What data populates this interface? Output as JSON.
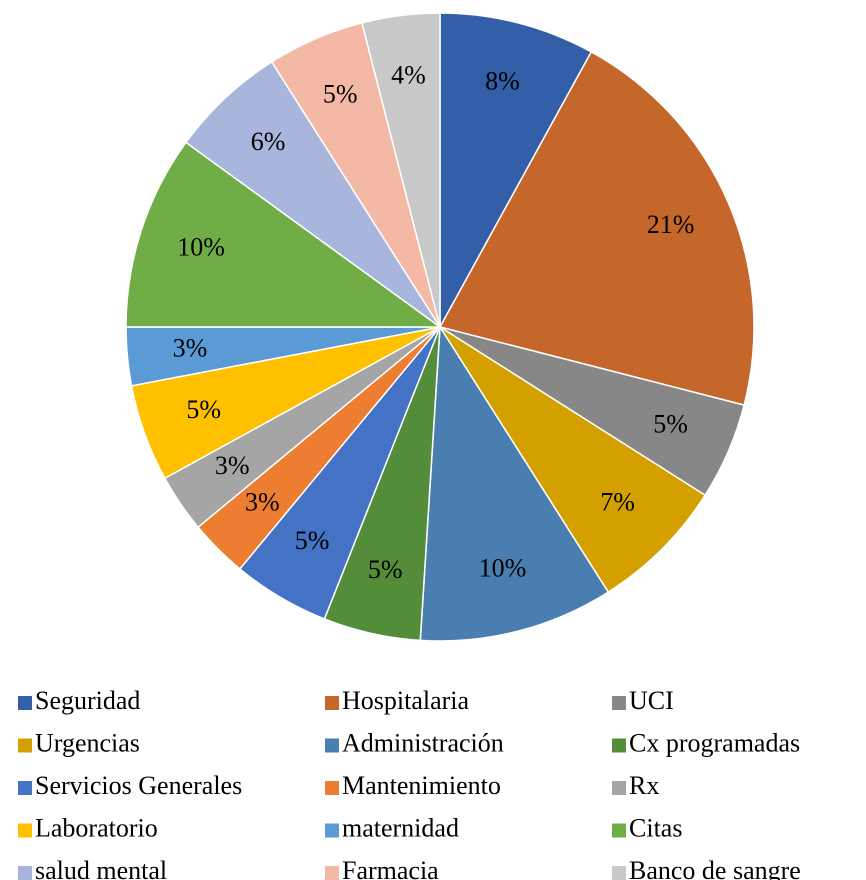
{
  "chart_data": {
    "type": "pie",
    "categories": [
      "Seguridad",
      "Hospitalaria",
      "UCI",
      "Urgencias",
      "Administración",
      "Cx programadas",
      "Servicios Generales",
      "Mantenimiento",
      "Rx",
      "Laboratorio",
      "maternidad",
      "Citas",
      "salud mental",
      "Farmacia",
      "Banco de sangre"
    ],
    "values": [
      8,
      21,
      5,
      7,
      10,
      5,
      5,
      3,
      3,
      5,
      3,
      10,
      6,
      5,
      4
    ],
    "value_labels": [
      "8%",
      "21%",
      "5%",
      "7%",
      "10%",
      "5%",
      "5%",
      "3%",
      "3%",
      "5%",
      "3%",
      "10%",
      "6%",
      "5%",
      "4%"
    ],
    "colors": [
      "#335ea8",
      "#c5672b",
      "#878787",
      "#d4a000",
      "#4a7eb0",
      "#548d3a",
      "#4472c4",
      "#ed7d31",
      "#a5a5a5",
      "#ffc000",
      "#5b9bd5",
      "#70ad47",
      "#a8b5dc",
      "#f4b9a4",
      "#c9c9c9"
    ],
    "legend": "bottom"
  }
}
